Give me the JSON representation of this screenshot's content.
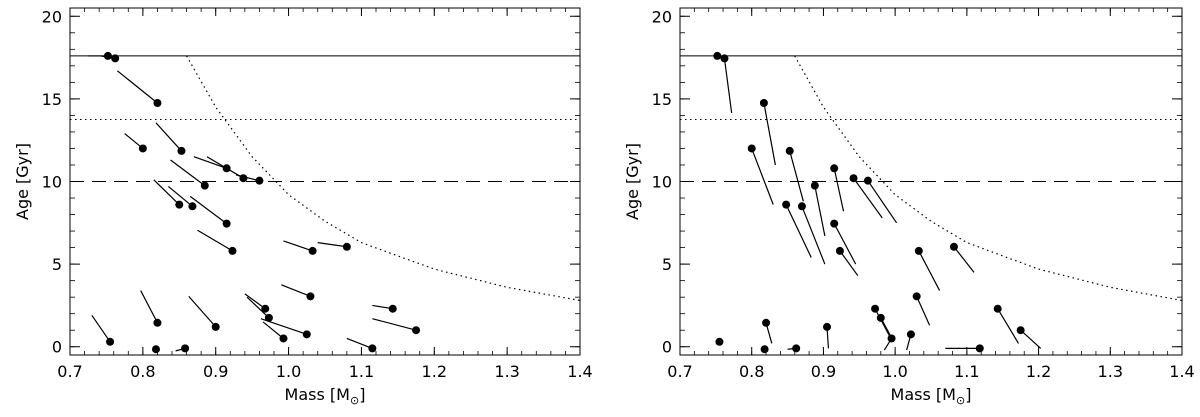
{
  "chart_data": [
    {
      "type": "scatter",
      "xlabel": "Mass [M",
      "xlabel_sub": "⊙",
      "xlabel_end": "]",
      "ylabel": "Age [Gyr]",
      "xlim": [
        0.7,
        1.4
      ],
      "ylim": [
        -0.5,
        20.5
      ],
      "xticks": [
        "0.7",
        "0.8",
        "0.9",
        "1.0",
        "1.1",
        "1.2",
        "1.3",
        "1.4"
      ],
      "yticks": [
        "0",
        "5",
        "10",
        "15",
        "20"
      ],
      "reference_lines": [
        {
          "style": "solid",
          "y": 17.6
        },
        {
          "style": "dotted",
          "y": 13.75
        },
        {
          "style": "dashed",
          "y": 10.0
        }
      ],
      "limit_curve": [
        [
          0.86,
          17.6
        ],
        [
          0.9,
          14.5
        ],
        [
          0.95,
          11.5
        ],
        [
          1.0,
          9.2
        ],
        [
          1.05,
          7.6
        ],
        [
          1.1,
          6.3
        ],
        [
          1.15,
          5.5
        ],
        [
          1.2,
          4.7
        ],
        [
          1.3,
          3.6
        ],
        [
          1.4,
          2.8
        ]
      ],
      "points": [
        {
          "x": 0.752,
          "y": 17.6,
          "x2": 0.725,
          "y2": 17.6
        },
        {
          "x": 0.762,
          "y": 17.45,
          "x2": 0.742,
          "y2": 17.6
        },
        {
          "x": 0.82,
          "y": 14.75,
          "x2": 0.765,
          "y2": 16.7
        },
        {
          "x": 0.8,
          "y": 12.0,
          "x2": 0.775,
          "y2": 12.9
        },
        {
          "x": 0.853,
          "y": 11.85,
          "x2": 0.818,
          "y2": 13.55
        },
        {
          "x": 0.915,
          "y": 10.8,
          "x2": 0.87,
          "y2": 11.5
        },
        {
          "x": 0.938,
          "y": 10.2,
          "x2": 0.888,
          "y2": 11.5
        },
        {
          "x": 0.96,
          "y": 10.05,
          "x2": 0.928,
          "y2": 10.4
        },
        {
          "x": 0.885,
          "y": 9.75,
          "x2": 0.838,
          "y2": 11.3
        },
        {
          "x": 0.85,
          "y": 8.6,
          "x2": 0.815,
          "y2": 10.1
        },
        {
          "x": 0.868,
          "y": 8.5,
          "x2": 0.835,
          "y2": 9.7
        },
        {
          "x": 0.915,
          "y": 7.45,
          "x2": 0.865,
          "y2": 9.1
        },
        {
          "x": 0.923,
          "y": 5.8,
          "x2": 0.875,
          "y2": 7.05
        },
        {
          "x": 1.033,
          "y": 5.8,
          "x2": 0.993,
          "y2": 6.4
        },
        {
          "x": 1.08,
          "y": 6.05,
          "x2": 1.04,
          "y2": 6.3
        },
        {
          "x": 1.03,
          "y": 3.05,
          "x2": 0.99,
          "y2": 3.75
        },
        {
          "x": 0.82,
          "y": 1.45,
          "x2": 0.797,
          "y2": 3.4
        },
        {
          "x": 0.9,
          "y": 1.2,
          "x2": 0.863,
          "y2": 3.05
        },
        {
          "x": 0.968,
          "y": 2.3,
          "x2": 0.94,
          "y2": 3.2
        },
        {
          "x": 0.973,
          "y": 1.75,
          "x2": 0.943,
          "y2": 3.0
        },
        {
          "x": 1.025,
          "y": 0.75,
          "x2": 0.962,
          "y2": 1.7
        },
        {
          "x": 0.993,
          "y": 0.5,
          "x2": 0.965,
          "y2": 1.5
        },
        {
          "x": 1.143,
          "y": 2.3,
          "x2": 1.115,
          "y2": 2.5
        },
        {
          "x": 1.175,
          "y": 1.0,
          "x2": 1.115,
          "y2": 1.7
        },
        {
          "x": 0.755,
          "y": 0.3,
          "x2": 0.73,
          "y2": 1.9
        },
        {
          "x": 0.818,
          "y": -0.15,
          "x2": 0.818,
          "y2": -0.15
        },
        {
          "x": 0.858,
          "y": -0.1,
          "x2": 0.845,
          "y2": -0.25
        },
        {
          "x": 1.115,
          "y": -0.1,
          "x2": 1.08,
          "y2": 0.5
        }
      ]
    },
    {
      "type": "scatter",
      "xlabel": "Mass [M",
      "xlabel_sub": "⊙",
      "xlabel_end": "]",
      "ylabel": "Age [Gyr]",
      "xlim": [
        0.7,
        1.4
      ],
      "ylim": [
        -0.5,
        20.5
      ],
      "xticks": [
        "0.7",
        "0.8",
        "0.9",
        "1.0",
        "1.1",
        "1.2",
        "1.3",
        "1.4"
      ],
      "yticks": [
        "0",
        "5",
        "10",
        "15",
        "20"
      ],
      "reference_lines": [
        {
          "style": "solid",
          "y": 17.6
        },
        {
          "style": "dotted",
          "y": 13.75
        },
        {
          "style": "dashed",
          "y": 10.0
        }
      ],
      "limit_curve": [
        [
          0.86,
          17.6
        ],
        [
          0.9,
          14.5
        ],
        [
          0.95,
          11.5
        ],
        [
          1.0,
          9.2
        ],
        [
          1.05,
          7.6
        ],
        [
          1.1,
          6.3
        ],
        [
          1.15,
          5.5
        ],
        [
          1.2,
          4.7
        ],
        [
          1.3,
          3.6
        ],
        [
          1.4,
          2.8
        ]
      ],
      "points": [
        {
          "x": 0.752,
          "y": 17.6,
          "x2": 0.752,
          "y2": 17.6
        },
        {
          "x": 0.762,
          "y": 17.45,
          "x2": 0.772,
          "y2": 14.15
        },
        {
          "x": 0.817,
          "y": 14.75,
          "x2": 0.833,
          "y2": 11.0
        },
        {
          "x": 0.8,
          "y": 12.0,
          "x2": 0.83,
          "y2": 8.6
        },
        {
          "x": 0.853,
          "y": 11.85,
          "x2": 0.872,
          "y2": 8.8
        },
        {
          "x": 0.915,
          "y": 10.8,
          "x2": 0.928,
          "y2": 8.2
        },
        {
          "x": 0.942,
          "y": 10.2,
          "x2": 0.982,
          "y2": 7.8
        },
        {
          "x": 0.962,
          "y": 10.05,
          "x2": 1.002,
          "y2": 7.5
        },
        {
          "x": 0.888,
          "y": 9.75,
          "x2": 0.902,
          "y2": 6.7
        },
        {
          "x": 0.848,
          "y": 8.6,
          "x2": 0.883,
          "y2": 5.4
        },
        {
          "x": 0.87,
          "y": 8.5,
          "x2": 0.902,
          "y2": 5.0
        },
        {
          "x": 0.915,
          "y": 7.45,
          "x2": 0.945,
          "y2": 5.0
        },
        {
          "x": 0.923,
          "y": 5.8,
          "x2": 0.948,
          "y2": 4.3
        },
        {
          "x": 1.033,
          "y": 5.8,
          "x2": 1.062,
          "y2": 3.4
        },
        {
          "x": 1.082,
          "y": 6.05,
          "x2": 1.11,
          "y2": 4.5
        },
        {
          "x": 1.03,
          "y": 3.05,
          "x2": 1.048,
          "y2": 1.3
        },
        {
          "x": 0.82,
          "y": 1.45,
          "x2": 0.828,
          "y2": 0.2
        },
        {
          "x": 0.905,
          "y": 1.2,
          "x2": 0.907,
          "y2": -0.1
        },
        {
          "x": 0.972,
          "y": 2.3,
          "x2": 0.994,
          "y2": 0.5
        },
        {
          "x": 0.98,
          "y": 1.75,
          "x2": 0.998,
          "y2": 0.3
        },
        {
          "x": 1.022,
          "y": 0.75,
          "x2": 1.016,
          "y2": -0.2
        },
        {
          "x": 0.995,
          "y": 0.5,
          "x2": 0.985,
          "y2": -0.2
        },
        {
          "x": 1.143,
          "y": 2.3,
          "x2": 1.172,
          "y2": 0.2
        },
        {
          "x": 1.175,
          "y": 1.0,
          "x2": 1.203,
          "y2": -0.1
        },
        {
          "x": 0.755,
          "y": 0.3,
          "x2": 0.755,
          "y2": 0.3
        },
        {
          "x": 0.818,
          "y": -0.15,
          "x2": 0.818,
          "y2": -0.15
        },
        {
          "x": 0.862,
          "y": -0.1,
          "x2": 0.85,
          "y2": -0.15
        },
        {
          "x": 1.118,
          "y": -0.1,
          "x2": 1.07,
          "y2": -0.1
        }
      ]
    }
  ]
}
